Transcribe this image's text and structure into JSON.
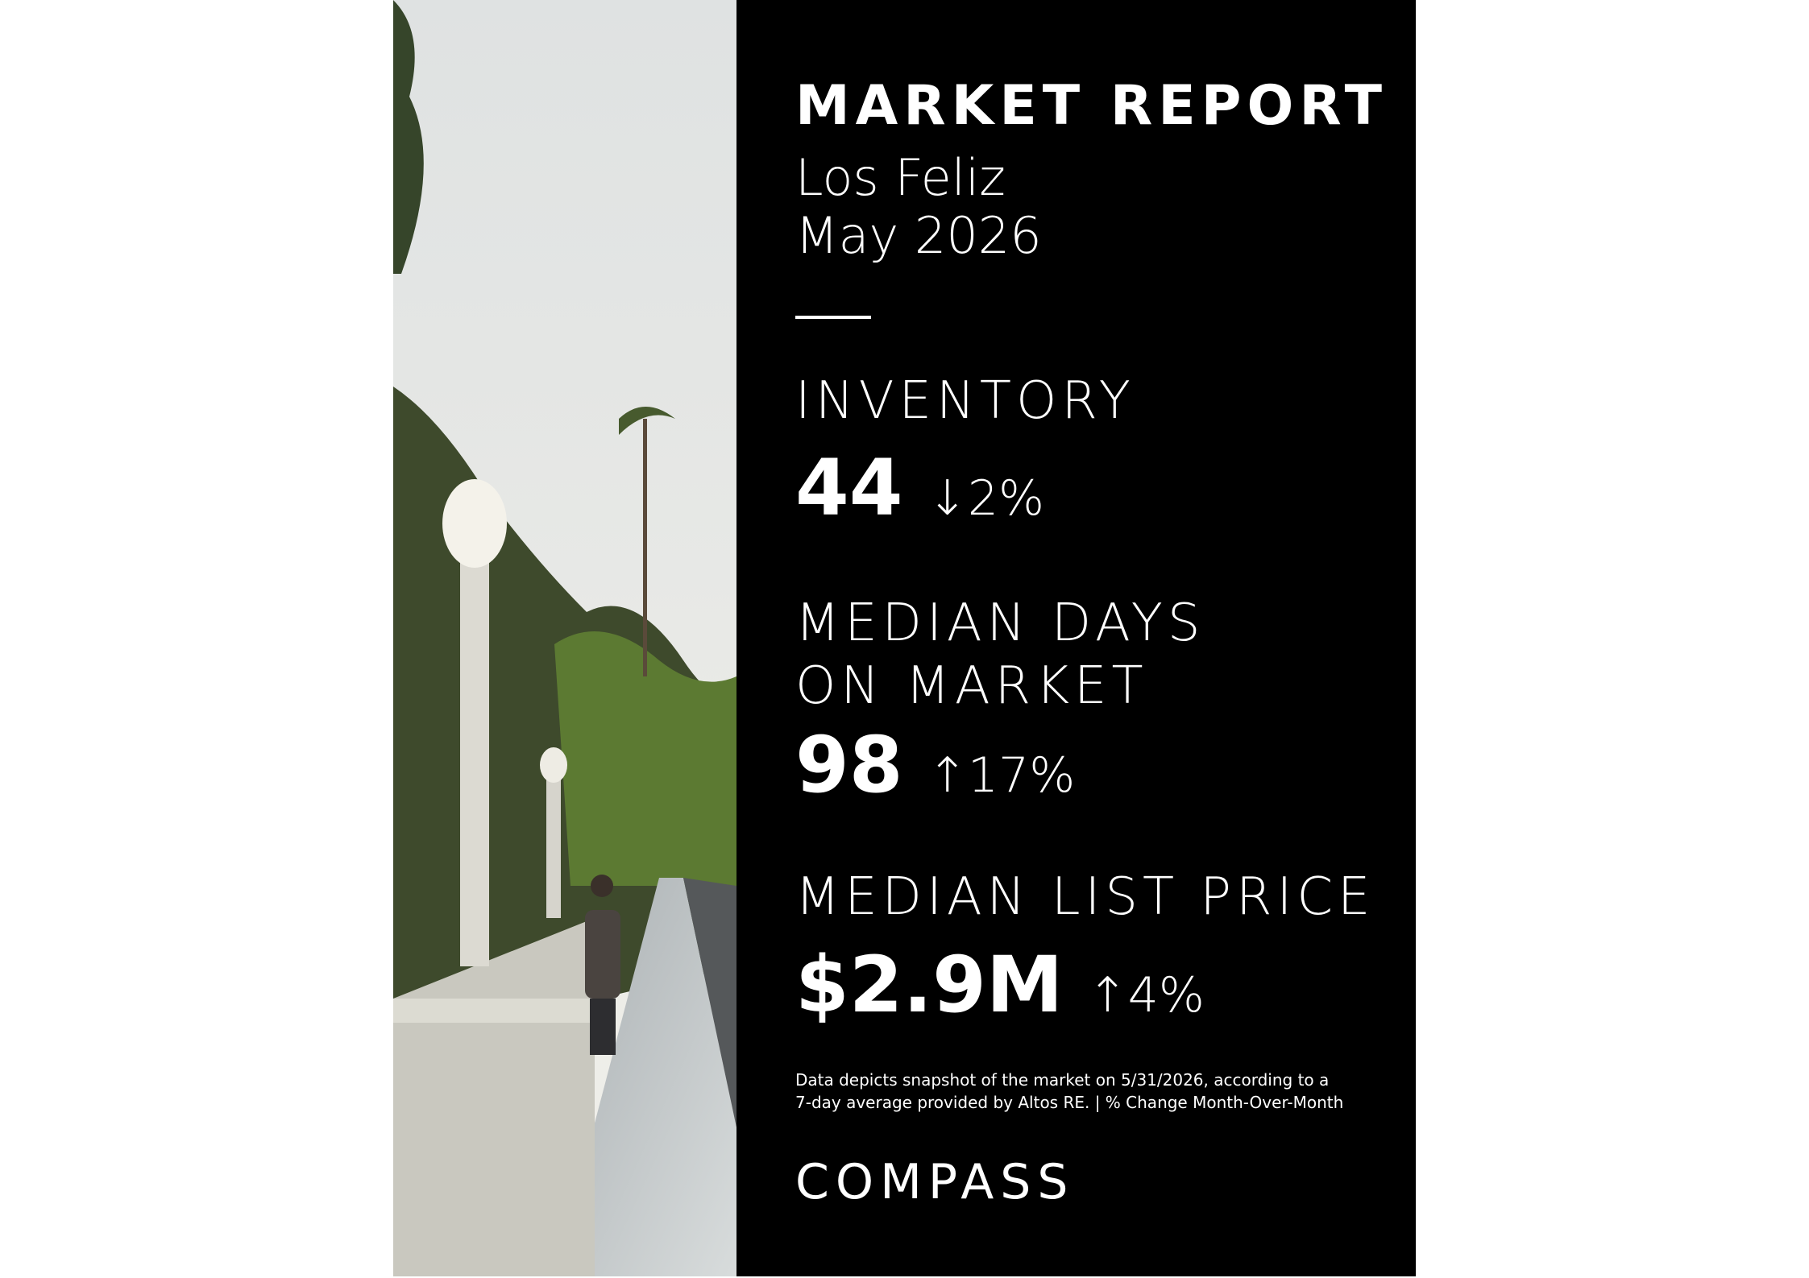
{
  "header": {
    "title": "MARKET REPORT",
    "location": "Los Feliz",
    "date": "May 2026"
  },
  "metrics": [
    {
      "label": [
        "INVENTORY"
      ],
      "value": "44",
      "change": "↓2%"
    },
    {
      "label": [
        "MEDIAN DAYS",
        "ON MARKET"
      ],
      "value": "98",
      "change": "↑17%"
    },
    {
      "label": [
        "MEDIAN LIST PRICE"
      ],
      "value": "$2.9M",
      "change": "↑4%"
    }
  ],
  "footnote": [
    "Data depicts snapshot of the market on 5/31/2026, according to a",
    "7-day average provided by Altos RE. | % Change Month-Over-Month"
  ],
  "logo": "COMPASS"
}
